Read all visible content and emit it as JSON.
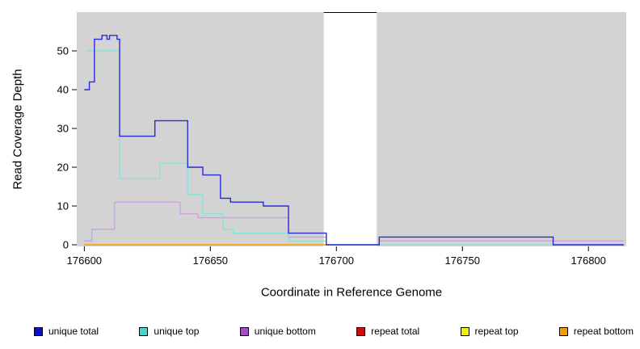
{
  "chart_data": {
    "type": "line",
    "subtype": "step-after",
    "title": "",
    "xlabel": "Coordinate in Reference Genome",
    "ylabel": "Read Coverage Depth",
    "xlim": [
      176597,
      176815
    ],
    "ylim": [
      0,
      60
    ],
    "x_ticks": [
      176600,
      176650,
      176700,
      176750,
      176800
    ],
    "y_ticks": [
      0,
      10,
      20,
      30,
      40,
      50
    ],
    "grid": false,
    "legend_position": "bottom",
    "panel_background": "#d3d3d3",
    "page_background": "#ffffff",
    "gap_region": {
      "x_start": 176695,
      "x_end": 176716,
      "color": "#ffffff"
    },
    "series": [
      {
        "name": "unique total",
        "line_color": "#2b2bd5",
        "swatch_color": "#0d0dcd",
        "points": [
          [
            176600,
            40
          ],
          [
            176602,
            42
          ],
          [
            176604,
            53
          ],
          [
            176607,
            54
          ],
          [
            176609,
            53
          ],
          [
            176610,
            54
          ],
          [
            176613,
            53
          ],
          [
            176614,
            28
          ],
          [
            176628,
            32
          ],
          [
            176641,
            20
          ],
          [
            176647,
            18
          ],
          [
            176654,
            12
          ],
          [
            176658,
            11
          ],
          [
            176671,
            10
          ],
          [
            176681,
            3
          ],
          [
            176696,
            0
          ],
          [
            176717,
            2
          ],
          [
            176786,
            0
          ],
          [
            176814,
            0
          ]
        ]
      },
      {
        "name": "unique top",
        "line_color": "#8ae1dc",
        "swatch_color": "#3fd6cd",
        "points": [
          [
            176601,
            50
          ],
          [
            176614,
            17
          ],
          [
            176630,
            21
          ],
          [
            176641,
            13
          ],
          [
            176647,
            8
          ],
          [
            176655,
            4
          ],
          [
            176659,
            3
          ],
          [
            176681,
            1
          ],
          [
            176696,
            0
          ],
          [
            176814,
            0
          ]
        ]
      },
      {
        "name": "unique bottom",
        "line_color": "#c9a3e0",
        "swatch_color": "#a44fc0",
        "points": [
          [
            176600,
            1
          ],
          [
            176603,
            4
          ],
          [
            176612,
            11
          ],
          [
            176638,
            8
          ],
          [
            176645,
            7
          ],
          [
            176681,
            2
          ],
          [
            176696,
            0
          ],
          [
            176717,
            1
          ],
          [
            176814,
            1
          ]
        ]
      },
      {
        "name": "repeat total",
        "line_color": "#d42a2a",
        "swatch_color": "#cd0d0d",
        "points": [
          [
            176600,
            0
          ],
          [
            176696,
            0
          ]
        ]
      },
      {
        "name": "repeat top",
        "line_color": "#f5f51e",
        "swatch_color": "#f0f00a",
        "points": [
          [
            176600,
            0
          ],
          [
            176696,
            0
          ]
        ]
      },
      {
        "name": "repeat bottom",
        "line_color": "#f5a623",
        "swatch_color": "#f59b0a",
        "points": [
          [
            176600,
            0
          ],
          [
            176696,
            0
          ]
        ]
      }
    ]
  }
}
